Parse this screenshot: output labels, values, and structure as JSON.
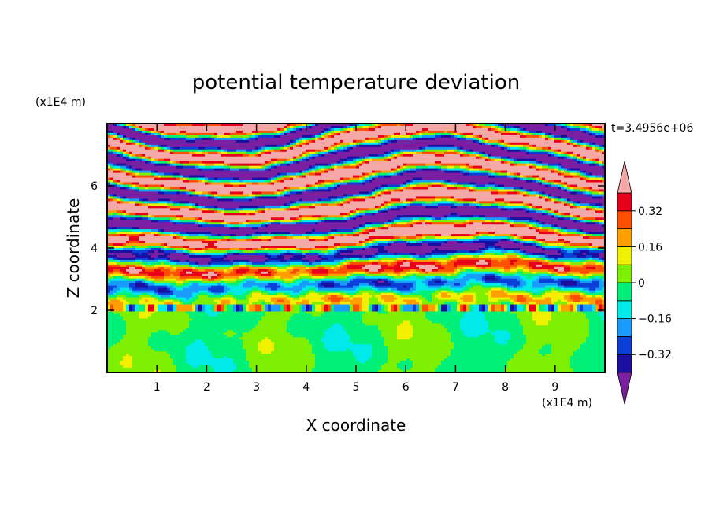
{
  "chart_data": {
    "type": "heatmap",
    "title": "potential temperature deviation",
    "xlabel": "X coordinate",
    "ylabel": "Z coordinate",
    "x_unit": "(x1E4 m)",
    "y_unit": "(x1E4 m)",
    "time_label": "t=3.4956e+06",
    "x_ticks": [
      1,
      2,
      3,
      4,
      5,
      6,
      7,
      8,
      9
    ],
    "y_ticks": [
      2,
      4,
      6
    ],
    "xlim": [
      0,
      10
    ],
    "ylim": [
      0,
      8
    ],
    "colorbar": {
      "levels": [
        -0.4,
        -0.32,
        -0.24,
        -0.16,
        -0.08,
        0,
        0.08,
        0.16,
        0.24,
        0.32,
        0.4
      ],
      "tick_labels": [
        "0.32",
        "0.16",
        "0",
        "−0.16",
        "−0.32"
      ],
      "tick_values": [
        0.32,
        0.16,
        0,
        -0.16,
        -0.32
      ],
      "colors": [
        "#7a1fa2",
        "#1a0fa0",
        "#0a3fd8",
        "#1a9cff",
        "#00eaea",
        "#00f07a",
        "#7cf000",
        "#f0f000",
        "#ffa000",
        "#ff5000",
        "#e8001a",
        "#f4a8a8"
      ],
      "extend": "both"
    },
    "regions": [
      {
        "z_range": [
          0,
          2
        ],
        "description_colors": [
          "#00f07a",
          "#7cf000"
        ],
        "pattern": "convective plumes"
      },
      {
        "z_range": [
          2,
          4.5
        ],
        "description_colors": [
          "#00eaea",
          "#00f07a",
          "#7cf000",
          "#0a3fd8",
          "#ff5000"
        ],
        "pattern": "mixed layered"
      },
      {
        "z_range": [
          4.5,
          8
        ],
        "description_colors": [
          "#7a1fa2",
          "#f4a8a8"
        ],
        "pattern": "horizontal stripes"
      }
    ]
  }
}
